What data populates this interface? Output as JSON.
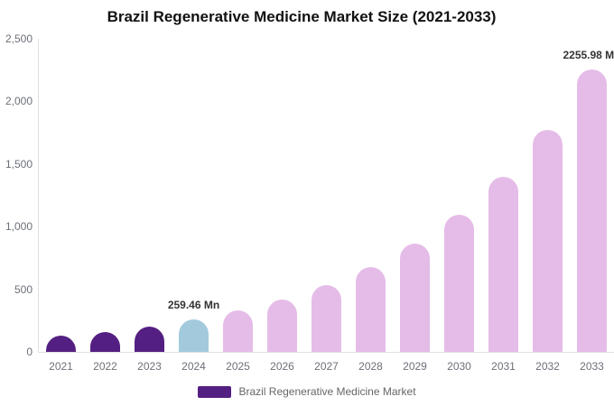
{
  "chart_data": {
    "type": "bar",
    "title": "Brazil Regenerative Medicine Market Size (2021-2033)",
    "categories": [
      "2021",
      "2022",
      "2023",
      "2024",
      "2025",
      "2026",
      "2027",
      "2028",
      "2029",
      "2030",
      "2031",
      "2032",
      "2033"
    ],
    "values": [
      126.2,
      160.5,
      204.0,
      259.46,
      330.0,
      419.6,
      533.6,
      678.6,
      863.0,
      1097.5,
      1395.7,
      1775.0,
      2255.98
    ],
    "unit": "Mn",
    "data_labels": [
      {
        "index": 3,
        "text": "259.46 Mn"
      },
      {
        "index": 12,
        "text": "2255.98 Mn"
      }
    ],
    "bar_colors": [
      "#541f82",
      "#541f82",
      "#541f82",
      "#a3cadc",
      "#e5bce8",
      "#e5bce8",
      "#e5bce8",
      "#e5bce8",
      "#e5bce8",
      "#e5bce8",
      "#e5bce8",
      "#e5bce8",
      "#e5bce8"
    ],
    "xlabel": "",
    "ylabel": "",
    "ylim": [
      0,
      2500
    ],
    "yticks": [
      "0",
      "500",
      "1,000",
      "1,500",
      "2,000",
      "2,500"
    ],
    "grid": false,
    "legend": {
      "position": "bottom",
      "label": "Brazil Regenerative Medicine Market",
      "swatch_color": "#541f82"
    },
    "colors": {
      "axis_line": "#e0e0e0",
      "axis_text": "#6e7079",
      "value_label_text": "#333333",
      "title_text": "#111111",
      "legend_text": "#666666",
      "background": "#ffffff"
    }
  }
}
